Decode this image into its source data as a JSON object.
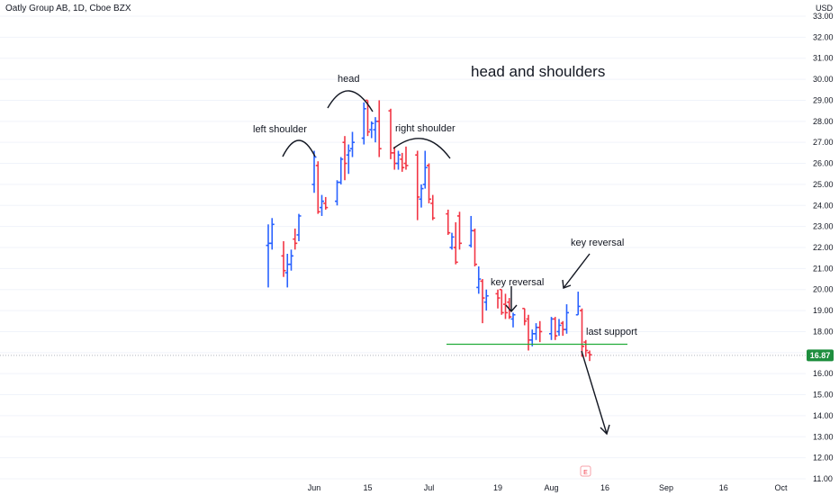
{
  "header": {
    "symbol_title": "Oatly Group AB, 1D, Cboe BZX",
    "currency": "USD",
    "price_badge": "16.87",
    "event_marker": "E"
  },
  "colors": {
    "up": "#2962ff",
    "down": "#f23645",
    "support": "#22ab39",
    "badge": "#1e8e3e",
    "grid": "#e6e8ee"
  },
  "chart_data": {
    "type": "ohlc",
    "title": "Oatly Group AB, 1D, Cboe BZX",
    "ylabel": "USD",
    "ylim": [
      11,
      33
    ],
    "yticks": [
      "11.00",
      "12.00",
      "13.00",
      "14.00",
      "15.00",
      "16.00",
      "17.00",
      "18.00",
      "19.00",
      "20.00",
      "21.00",
      "22.00",
      "23.00",
      "24.00",
      "25.00",
      "26.00",
      "27.00",
      "28.00",
      "29.00",
      "30.00",
      "31.00",
      "32.00",
      "33.00"
    ],
    "xticks": [
      "Jun",
      "15",
      "Jul",
      "19",
      "Aug",
      "16",
      "Sep",
      "16",
      "Oct"
    ],
    "last_price": 16.87,
    "series": [
      {
        "date": "2021-05-20",
        "open": 22.1,
        "high": 23.1,
        "low": 20.1,
        "close": 22.2
      },
      {
        "date": "2021-05-21",
        "open": 22.2,
        "high": 23.4,
        "low": 21.9,
        "close": 23.1
      },
      {
        "date": "2021-05-24",
        "open": 21.6,
        "high": 22.3,
        "low": 20.6,
        "close": 20.9
      },
      {
        "date": "2021-05-25",
        "open": 20.8,
        "high": 21.7,
        "low": 20.1,
        "close": 21.2
      },
      {
        "date": "2021-05-26",
        "open": 21.2,
        "high": 21.9,
        "low": 20.9,
        "close": 21.6
      },
      {
        "date": "2021-05-27",
        "open": 22.4,
        "high": 22.9,
        "low": 21.9,
        "close": 22.2
      },
      {
        "date": "2021-05-28",
        "open": 22.6,
        "high": 23.6,
        "low": 22.3,
        "close": 23.5
      },
      {
        "date": "2021-06-01",
        "open": 25.0,
        "high": 26.6,
        "low": 24.6,
        "close": 26.3
      },
      {
        "date": "2021-06-02",
        "open": 25.9,
        "high": 26.1,
        "low": 23.6,
        "close": 23.7
      },
      {
        "date": "2021-06-03",
        "open": 23.9,
        "high": 24.5,
        "low": 23.5,
        "close": 24.2
      },
      {
        "date": "2021-06-04",
        "open": 24.1,
        "high": 24.4,
        "low": 23.8,
        "close": 23.9
      },
      {
        "date": "2021-06-07",
        "open": 24.2,
        "high": 25.2,
        "low": 24.0,
        "close": 25.1
      },
      {
        "date": "2021-06-08",
        "open": 25.1,
        "high": 26.3,
        "low": 25.0,
        "close": 26.2
      },
      {
        "date": "2021-06-09",
        "open": 27.0,
        "high": 27.3,
        "low": 25.2,
        "close": 26.0
      },
      {
        "date": "2021-06-10",
        "open": 26.4,
        "high": 26.9,
        "low": 25.5,
        "close": 26.6
      },
      {
        "date": "2021-06-11",
        "open": 26.7,
        "high": 27.5,
        "low": 26.3,
        "close": 27.0
      },
      {
        "date": "2021-06-14",
        "open": 27.2,
        "high": 28.9,
        "low": 26.9,
        "close": 28.6
      },
      {
        "date": "2021-06-15",
        "open": 29.0,
        "high": 29.0,
        "low": 27.3,
        "close": 27.5
      },
      {
        "date": "2021-06-16",
        "open": 27.6,
        "high": 28.0,
        "low": 27.2,
        "close": 27.9
      },
      {
        "date": "2021-06-17",
        "open": 27.6,
        "high": 28.2,
        "low": 27.0,
        "close": 28.0
      },
      {
        "date": "2021-06-18",
        "open": 28.0,
        "high": 29.0,
        "low": 26.3,
        "close": 26.7
      },
      {
        "date": "2021-06-21",
        "open": 28.5,
        "high": 28.6,
        "low": 26.2,
        "close": 26.5
      },
      {
        "date": "2021-06-22",
        "open": 26.5,
        "high": 26.8,
        "low": 25.7,
        "close": 26.0
      },
      {
        "date": "2021-06-23",
        "open": 26.0,
        "high": 26.6,
        "low": 25.7,
        "close": 26.4
      },
      {
        "date": "2021-06-24",
        "open": 26.2,
        "high": 26.5,
        "low": 25.6,
        "close": 25.8
      },
      {
        "date": "2021-06-25",
        "open": 26.0,
        "high": 26.8,
        "low": 25.7,
        "close": 25.9
      },
      {
        "date": "2021-06-28",
        "open": 26.4,
        "high": 26.6,
        "low": 23.3,
        "close": 24.4
      },
      {
        "date": "2021-06-29",
        "open": 24.3,
        "high": 25.0,
        "low": 23.9,
        "close": 24.8
      },
      {
        "date": "2021-06-30",
        "open": 25.0,
        "high": 26.6,
        "low": 24.8,
        "close": 25.8
      },
      {
        "date": "2021-07-01",
        "open": 25.9,
        "high": 26.0,
        "low": 24.1,
        "close": 24.3
      },
      {
        "date": "2021-07-02",
        "open": 24.1,
        "high": 24.5,
        "low": 23.3,
        "close": 23.4
      },
      {
        "date": "2021-07-06",
        "open": 23.6,
        "high": 23.8,
        "low": 22.6,
        "close": 22.7
      },
      {
        "date": "2021-07-07",
        "open": 22.0,
        "high": 22.7,
        "low": 21.9,
        "close": 22.5
      },
      {
        "date": "2021-07-08",
        "open": 22.0,
        "high": 23.2,
        "low": 21.2,
        "close": 21.3
      },
      {
        "date": "2021-07-09",
        "open": 23.5,
        "high": 23.7,
        "low": 21.9,
        "close": 22.2
      },
      {
        "date": "2021-07-12",
        "open": 22.1,
        "high": 23.5,
        "low": 22.0,
        "close": 22.8
      },
      {
        "date": "2021-07-13",
        "open": 22.8,
        "high": 22.9,
        "low": 21.1,
        "close": 21.2
      },
      {
        "date": "2021-07-14",
        "open": 20.1,
        "high": 21.1,
        "low": 19.8,
        "close": 20.5
      },
      {
        "date": "2021-07-15",
        "open": 20.4,
        "high": 20.5,
        "low": 18.4,
        "close": 19.6
      },
      {
        "date": "2021-07-16",
        "open": 19.4,
        "high": 20.0,
        "low": 19.0,
        "close": 19.7
      },
      {
        "date": "2021-07-19",
        "open": 19.8,
        "high": 20.0,
        "low": 19.1,
        "close": 19.6
      },
      {
        "date": "2021-07-20",
        "open": 20.0,
        "high": 20.0,
        "low": 18.8,
        "close": 18.9
      },
      {
        "date": "2021-07-21",
        "open": 19.3,
        "high": 19.8,
        "low": 18.6,
        "close": 18.9
      },
      {
        "date": "2021-07-22",
        "open": 19.4,
        "high": 19.6,
        "low": 18.6,
        "close": 18.7
      },
      {
        "date": "2021-07-23",
        "open": 18.6,
        "high": 18.9,
        "low": 18.2,
        "close": 18.8
      },
      {
        "date": "2021-07-26",
        "open": 19.1,
        "high": 19.1,
        "low": 18.3,
        "close": 18.5
      },
      {
        "date": "2021-07-27",
        "open": 18.6,
        "high": 18.8,
        "low": 17.1,
        "close": 17.6
      },
      {
        "date": "2021-07-28",
        "open": 17.6,
        "high": 18.1,
        "low": 17.3,
        "close": 17.9
      },
      {
        "date": "2021-07-29",
        "open": 17.9,
        "high": 18.4,
        "low": 17.6,
        "close": 18.2
      },
      {
        "date": "2021-07-30",
        "open": 18.2,
        "high": 18.5,
        "low": 17.5,
        "close": 18.0
      },
      {
        "date": "2021-08-02",
        "open": 17.9,
        "high": 18.7,
        "low": 17.6,
        "close": 18.6
      },
      {
        "date": "2021-08-03",
        "open": 18.6,
        "high": 18.7,
        "low": 17.6,
        "close": 17.8
      },
      {
        "date": "2021-08-04",
        "open": 18.0,
        "high": 18.6,
        "low": 17.8,
        "close": 18.3
      },
      {
        "date": "2021-08-05",
        "open": 18.4,
        "high": 18.5,
        "low": 17.8,
        "close": 18.1
      },
      {
        "date": "2021-08-06",
        "open": 18.1,
        "high": 19.3,
        "low": 17.9,
        "close": 18.9
      },
      {
        "date": "2021-08-09",
        "open": 18.8,
        "high": 19.9,
        "low": 18.8,
        "close": 19.2
      },
      {
        "date": "2021-08-10",
        "open": 19.0,
        "high": 19.1,
        "low": 16.8,
        "close": 17.3
      },
      {
        "date": "2021-08-11",
        "open": 17.5,
        "high": 17.6,
        "low": 16.8,
        "close": 17.1
      },
      {
        "date": "2021-08-12",
        "open": 17.0,
        "high": 17.1,
        "low": 16.6,
        "close": 16.9
      }
    ],
    "annotations": [
      {
        "text": "head and shoulders",
        "size": "large"
      },
      {
        "text": "head",
        "size": "normal"
      },
      {
        "text": "left shoulder",
        "size": "normal"
      },
      {
        "text": "right shoulder",
        "size": "normal"
      },
      {
        "text": "key reversal",
        "size": "normal"
      },
      {
        "text": "key reversal",
        "size": "normal"
      },
      {
        "text": "last support",
        "size": "normal"
      }
    ],
    "support_level": 17.4
  }
}
